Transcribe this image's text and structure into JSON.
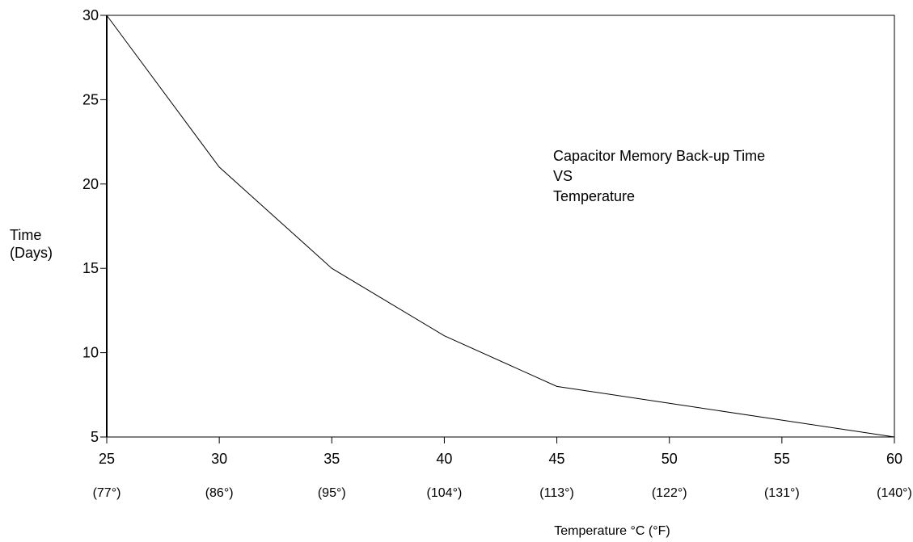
{
  "chart_data": {
    "type": "line",
    "title": "",
    "annotation": {
      "lines": [
        "Capacitor Memory Back-up Time",
        "VS",
        "Temperature"
      ]
    },
    "ylabel_lines": [
      "Time",
      "(Days)"
    ],
    "xlabel": "Temperature °C (°F)",
    "x": [
      25,
      30,
      35,
      40,
      45,
      50,
      55,
      60
    ],
    "x_tick_labels": [
      "25",
      "30",
      "35",
      "40",
      "45",
      "50",
      "55",
      "60"
    ],
    "x_secondary_tick_labels": [
      "(77°)",
      "(86°)",
      "(95°)",
      "(104°)",
      "(113°)",
      "(122°)",
      "(131°)",
      "(140°)"
    ],
    "y_ticks": [
      5,
      10,
      15,
      20,
      25,
      30
    ],
    "y_tick_labels": [
      "5",
      "10",
      "15",
      "20",
      "25",
      "30"
    ],
    "series": [
      {
        "x": [
          25,
          30,
          35,
          40,
          45,
          50,
          55,
          60
        ],
        "values": [
          30,
          21,
          15,
          11,
          8,
          7,
          6,
          5
        ]
      }
    ],
    "xlim": [
      25,
      60
    ],
    "ylim": [
      5,
      30
    ],
    "grid": false,
    "legend": "none"
  }
}
